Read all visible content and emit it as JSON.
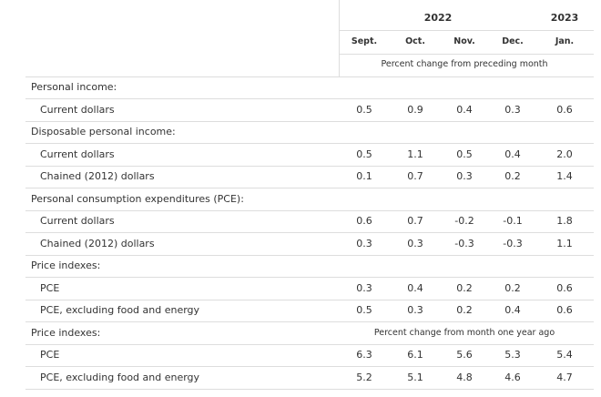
{
  "header": {
    "years": [
      "2022",
      "2023"
    ],
    "months": [
      "Sept.",
      "Oct.",
      "Nov.",
      "Dec.",
      "Jan."
    ],
    "subheader": "Percent change from preceding month"
  },
  "sections": [
    {
      "title": "Personal income:",
      "rows": [
        {
          "label": "Current dollars",
          "values": [
            "0.5",
            "0.9",
            "0.4",
            "0.3",
            "0.6"
          ]
        }
      ]
    },
    {
      "title": "Disposable personal income:",
      "rows": [
        {
          "label": "Current dollars",
          "values": [
            "0.5",
            "1.1",
            "0.5",
            "0.4",
            "2.0"
          ]
        },
        {
          "label": "Chained (2012) dollars",
          "values": [
            "0.1",
            "0.7",
            "0.3",
            "0.2",
            "1.4"
          ]
        }
      ]
    },
    {
      "title": "Personal consumption expenditures (PCE):",
      "rows": [
        {
          "label": "Current dollars",
          "values": [
            "0.6",
            "0.7",
            "-0.2",
            "-0.1",
            "1.8"
          ]
        },
        {
          "label": "Chained (2012) dollars",
          "values": [
            "0.3",
            "0.3",
            "-0.3",
            "-0.3",
            "1.1"
          ]
        }
      ]
    },
    {
      "title": "Price indexes:",
      "rows": [
        {
          "label": "PCE",
          "values": [
            "0.3",
            "0.4",
            "0.2",
            "0.2",
            "0.6"
          ]
        },
        {
          "label": "PCE, excluding food and energy",
          "values": [
            "0.5",
            "0.3",
            "0.2",
            "0.4",
            "0.6"
          ]
        }
      ]
    },
    {
      "title": "Price indexes:",
      "note": "Percent change from month one year ago",
      "rows": [
        {
          "label": "PCE",
          "values": [
            "6.3",
            "6.1",
            "5.6",
            "5.3",
            "5.4"
          ]
        },
        {
          "label": "PCE, excluding food and energy",
          "values": [
            "5.2",
            "5.1",
            "4.8",
            "4.6",
            "4.7"
          ]
        }
      ]
    }
  ]
}
